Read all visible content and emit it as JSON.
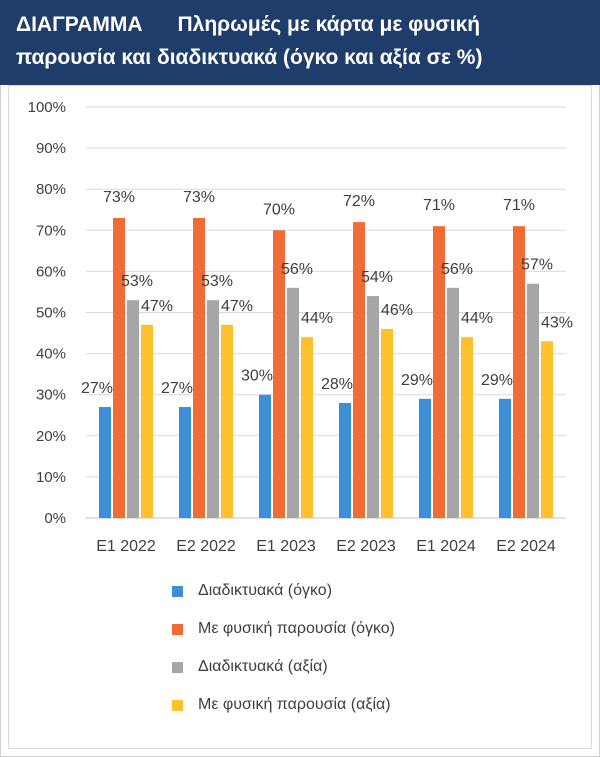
{
  "header": {
    "line1": "ΔΙΑΓΡΑΜΜΑ      Πληρωμές με κάρτα με φυσική",
    "line2": "παρουσία και διαδικτυακά (όγκο και αξία σε %)"
  },
  "chart_data": {
    "type": "bar",
    "title": "ΔΙΑΓΡΑΜΜΑ Πληρωμές με κάρτα με φυσική παρουσία και διαδικτυακά (όγκο και αξία σε %)",
    "categories": [
      "E1 2022",
      "E2 2022",
      "E1 2023",
      "E2 2023",
      "E1 2024",
      "E2 2024"
    ],
    "series": [
      {
        "name": "Διαδικτυακά (όγκο)",
        "color": "#3c8fd6",
        "values": [
          27,
          27,
          30,
          28,
          29,
          29
        ]
      },
      {
        "name": "Με φυσική παρουσία (όγκο)",
        "color": "#f26b35",
        "values": [
          73,
          73,
          70,
          72,
          71,
          71
        ]
      },
      {
        "name": "Διαδικτυακά (αξία)",
        "color": "#a6a6a6",
        "values": [
          53,
          53,
          56,
          54,
          56,
          57
        ]
      },
      {
        "name": "Με φυσική παρουσία (αξία)",
        "color": "#fcc12d",
        "values": [
          47,
          47,
          44,
          46,
          44,
          43
        ]
      }
    ],
    "ylim": [
      0,
      100
    ],
    "ytick_step": 10,
    "ytick_labels": [
      "0%",
      "10%",
      "20%",
      "30%",
      "40%",
      "50%",
      "60%",
      "70%",
      "80%",
      "90%",
      "100%"
    ],
    "value_suffix": "%",
    "grid": true,
    "legend_position": "bottom",
    "xlabel": "",
    "ylabel": ""
  }
}
